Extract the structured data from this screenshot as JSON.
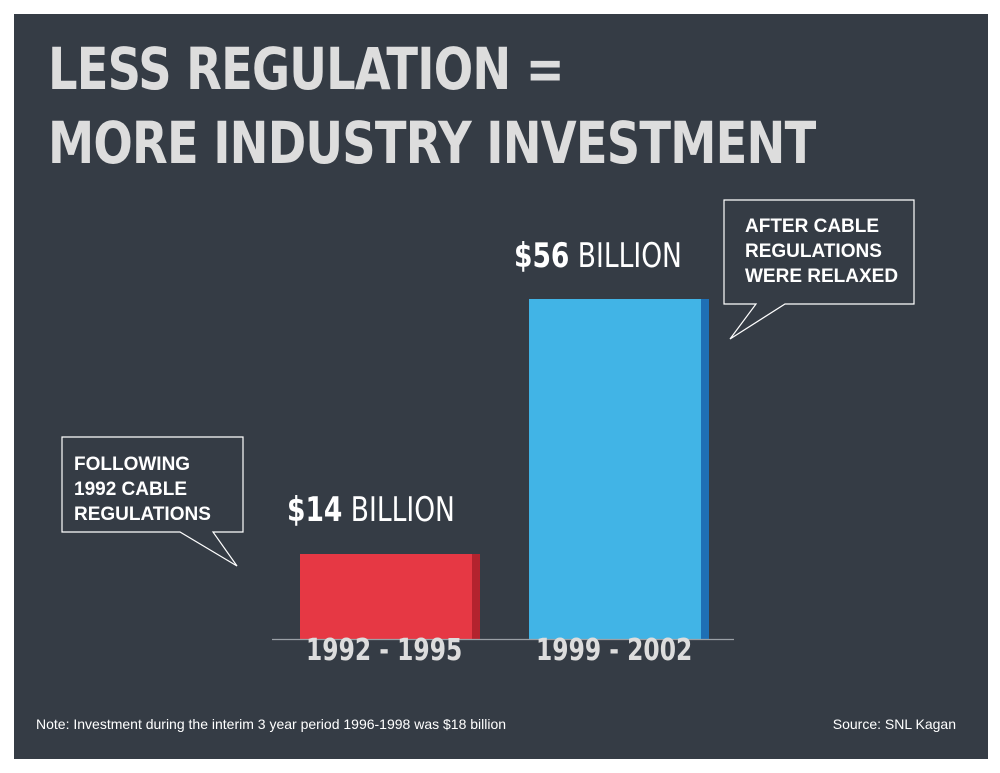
{
  "title_lines": [
    "LESS REGULATION =",
    "MORE INDUSTRY INVESTMENT"
  ],
  "chart_data": {
    "type": "bar",
    "title": "LESS REGULATION = MORE INDUSTRY INVESTMENT",
    "categories": [
      "1992 - 1995",
      "1999 - 2002"
    ],
    "values": [
      14,
      56
    ],
    "unit": "billion USD",
    "value_labels": [
      {
        "amount": "$14",
        "unit": "BILLION"
      },
      {
        "amount": "$56",
        "unit": "BILLION"
      }
    ],
    "colors": [
      "#e63844",
      "#41b4e6"
    ],
    "shadow_colors": [
      "#b3232e",
      "#1e6fb5"
    ],
    "ylim": [
      0,
      56
    ],
    "grid": false,
    "legend": "none",
    "annotations": [
      {
        "text": "FOLLOWING\n1992 CABLE\nREGULATIONS",
        "target": "1992 - 1995"
      },
      {
        "text": "AFTER CABLE\nREGULATIONS\nWERE RELAXED",
        "target": "1999 - 2002"
      }
    ]
  },
  "footnote": "Note: Investment during the interim 3 year period 1996-1998 was $18 billion",
  "source": "Source: SNL Kagan",
  "colors": {
    "background": "#353c45",
    "frame": "#ffffff",
    "title": "#dddddd",
    "axis": "#9aa0a6"
  }
}
